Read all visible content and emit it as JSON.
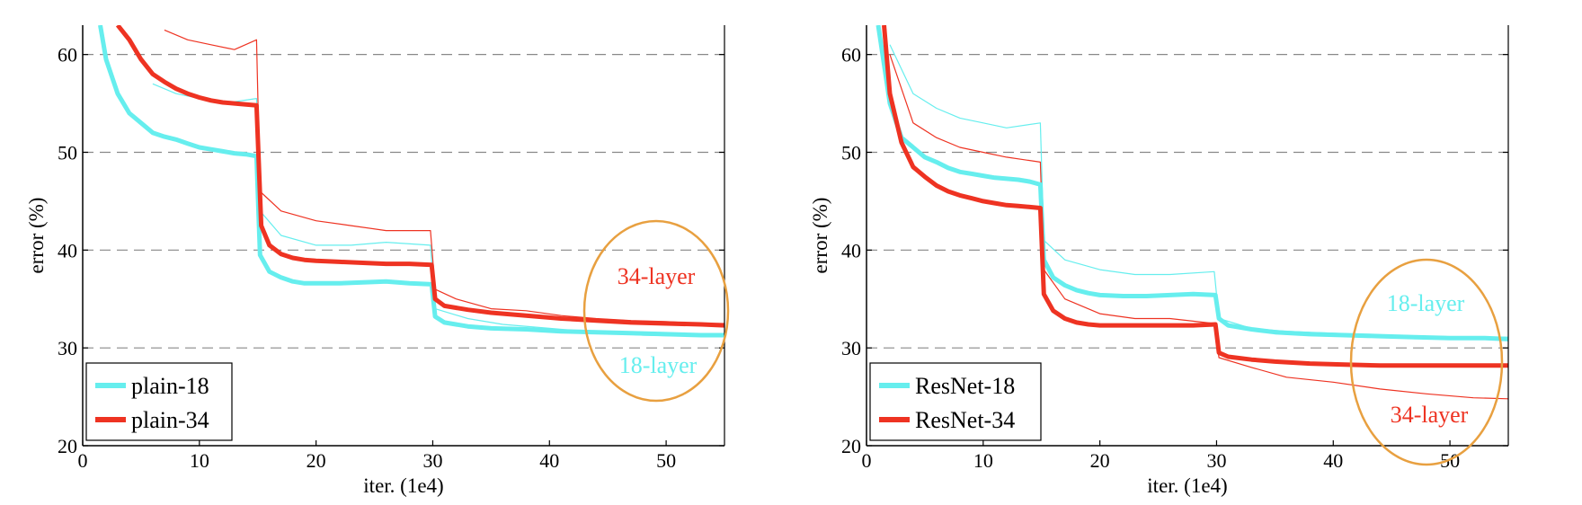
{
  "chart_data": [
    {
      "type": "line",
      "xlabel": "iter. (1e4)",
      "ylabel": "error (%)",
      "xlim": [
        0,
        55
      ],
      "ylim": [
        20,
        63
      ],
      "xticks": [
        0,
        10,
        20,
        30,
        40,
        50
      ],
      "yticks": [
        20,
        30,
        40,
        50,
        60
      ],
      "grid": "horizontal dashed at 30, 40, 50, 60",
      "legend_position": "bottom-left",
      "series": [
        {
          "name": "plain-18",
          "color": "#66eeee",
          "style": "bold (validation)",
          "x": [
            1.5,
            2,
            3,
            4,
            5,
            6,
            7,
            8,
            9,
            10,
            11,
            12,
            13,
            14,
            14.9,
            15.2,
            16,
            17,
            18,
            19,
            20,
            22,
            24,
            26,
            28,
            29.9,
            30.2,
            31,
            33,
            35,
            38,
            41,
            44,
            47,
            50,
            53,
            55
          ],
          "y": [
            63,
            59.5,
            56,
            54,
            53,
            52,
            51.6,
            51.3,
            50.9,
            50.5,
            50.3,
            50.1,
            49.9,
            49.8,
            49.6,
            39.5,
            37.8,
            37.2,
            36.8,
            36.6,
            36.6,
            36.6,
            36.7,
            36.8,
            36.6,
            36.5,
            33.2,
            32.6,
            32.2,
            32.0,
            31.9,
            31.7,
            31.6,
            31.5,
            31.4,
            31.3,
            31.3
          ]
        },
        {
          "name": "plain-34",
          "color": "#ee3322",
          "style": "bold (validation)",
          "x": [
            3,
            4,
            5,
            6,
            7,
            8,
            9,
            10,
            11,
            12,
            13,
            14,
            14.9,
            15.3,
            16,
            17,
            18,
            19,
            20,
            22,
            24,
            26,
            28,
            29.9,
            30.2,
            31,
            33,
            35,
            38,
            41,
            44,
            47,
            50,
            53,
            55
          ],
          "y": [
            63,
            61.5,
            59.5,
            58,
            57.2,
            56.5,
            56,
            55.6,
            55.3,
            55.1,
            55,
            54.9,
            54.8,
            42.5,
            40.5,
            39.6,
            39.2,
            39.0,
            38.9,
            38.8,
            38.7,
            38.6,
            38.6,
            38.5,
            35,
            34.3,
            33.9,
            33.6,
            33.3,
            33.0,
            32.8,
            32.6,
            32.5,
            32.4,
            32.3
          ]
        },
        {
          "name": "plain-34 (training)",
          "color": "#ee3322",
          "style": "thin",
          "x": [
            7,
            9,
            11,
            13,
            14.9,
            15.2,
            17,
            20,
            23,
            26,
            29.8,
            30.2,
            32,
            35,
            38,
            41,
            44,
            47,
            50,
            53,
            55
          ],
          "y": [
            62.5,
            61.5,
            61,
            60.5,
            61.5,
            46,
            44,
            43,
            42.5,
            42,
            42,
            36,
            35,
            34,
            33.8,
            33.3,
            33,
            32.8,
            32.7,
            32.5,
            32.5
          ]
        },
        {
          "name": "plain-18 (training)",
          "color": "#66eeee",
          "style": "thin",
          "x": [
            6,
            8,
            10,
            12,
            14.9,
            15.2,
            17,
            20,
            23,
            26,
            29.8,
            30.2,
            33,
            36,
            40,
            44,
            48,
            52,
            55
          ],
          "y": [
            57,
            56,
            55.5,
            55,
            55.5,
            44,
            41.5,
            40.5,
            40.5,
            40.8,
            40.5,
            34,
            33,
            32.4,
            32,
            31.6,
            31.3,
            31.2,
            31.3
          ]
        }
      ],
      "annotations": [
        {
          "text": "34-layer",
          "color": "#ee3322"
        },
        {
          "text": "18-layer",
          "color": "#66eeee"
        }
      ],
      "highlight": {
        "shape": "circle",
        "color": "#e8a040"
      }
    },
    {
      "type": "line",
      "xlabel": "iter. (1e4)",
      "ylabel": "error (%)",
      "xlim": [
        0,
        55
      ],
      "ylim": [
        20,
        63
      ],
      "xticks": [
        0,
        10,
        20,
        30,
        40,
        50
      ],
      "yticks": [
        20,
        30,
        40,
        50,
        60
      ],
      "grid": "horizontal dashed at 30, 40, 50, 60",
      "legend_position": "bottom-left",
      "series": [
        {
          "name": "ResNet-18",
          "color": "#66eeee",
          "style": "bold (validation)",
          "x": [
            1.0,
            1.5,
            2,
            3,
            4,
            5,
            6,
            7,
            8,
            9,
            10,
            11,
            12,
            13,
            14,
            14.9,
            15.2,
            16,
            17,
            18,
            19,
            20,
            22,
            24,
            26,
            28,
            29.9,
            30.2,
            31,
            33,
            35,
            38,
            41,
            44,
            47,
            50,
            53,
            55
          ],
          "y": [
            63,
            59,
            55,
            51.5,
            50.5,
            49.5,
            49,
            48.4,
            48,
            47.8,
            47.6,
            47.4,
            47.3,
            47.2,
            47.0,
            46.7,
            39,
            37.2,
            36.4,
            35.9,
            35.6,
            35.4,
            35.3,
            35.3,
            35.4,
            35.5,
            35.4,
            33,
            32.3,
            31.9,
            31.6,
            31.4,
            31.3,
            31.2,
            31.1,
            31.0,
            31.0,
            30.9
          ]
        },
        {
          "name": "ResNet-34",
          "color": "#ee3322",
          "style": "bold (validation)",
          "x": [
            1.5,
            2,
            3,
            4,
            5,
            6,
            7,
            8,
            9,
            10,
            11,
            12,
            13,
            14,
            14.9,
            15.2,
            16,
            17,
            18,
            19,
            20,
            22,
            24,
            26,
            28,
            29.9,
            30.2,
            31,
            33,
            35,
            38,
            41,
            44,
            47,
            50,
            53,
            55
          ],
          "y": [
            63,
            56,
            51,
            48.5,
            47.5,
            46.6,
            46,
            45.6,
            45.3,
            45.0,
            44.8,
            44.6,
            44.5,
            44.4,
            44.3,
            35.5,
            33.8,
            33.0,
            32.6,
            32.4,
            32.3,
            32.3,
            32.3,
            32.3,
            32.3,
            32.4,
            29.5,
            29.1,
            28.8,
            28.6,
            28.4,
            28.3,
            28.2,
            28.2,
            28.2,
            28.2,
            28.2
          ]
        },
        {
          "name": "ResNet-18 (training)",
          "color": "#66eeee",
          "style": "thin",
          "x": [
            2,
            4,
            6,
            8,
            10,
            12,
            14.9,
            15.2,
            17,
            20,
            23,
            26,
            29.8,
            30.2,
            33,
            36,
            40,
            44,
            48,
            52,
            55
          ],
          "y": [
            61,
            56,
            54.5,
            53.5,
            53,
            52.5,
            53,
            41,
            39,
            38,
            37.5,
            37.5,
            37.8,
            33,
            32,
            31.7,
            31.5,
            31.3,
            31.2,
            31.1,
            31.1
          ]
        },
        {
          "name": "ResNet-34 (training)",
          "color": "#ee3322",
          "style": "thin",
          "x": [
            2,
            4,
            6,
            8,
            10,
            12,
            14.9,
            15.2,
            17,
            20,
            23,
            26,
            29.8,
            30.2,
            33,
            36,
            40,
            44,
            48,
            52,
            55
          ],
          "y": [
            60,
            53,
            51.5,
            50.5,
            50,
            49.5,
            49,
            38,
            35,
            33.5,
            33,
            33,
            32.5,
            29,
            28,
            27,
            26.5,
            25.8,
            25.3,
            24.9,
            24.8
          ]
        }
      ],
      "annotations": [
        {
          "text": "18-layer",
          "color": "#66eeee"
        },
        {
          "text": "34-layer",
          "color": "#ee3322"
        }
      ],
      "highlight": {
        "shape": "circle",
        "color": "#e8a040"
      }
    }
  ]
}
